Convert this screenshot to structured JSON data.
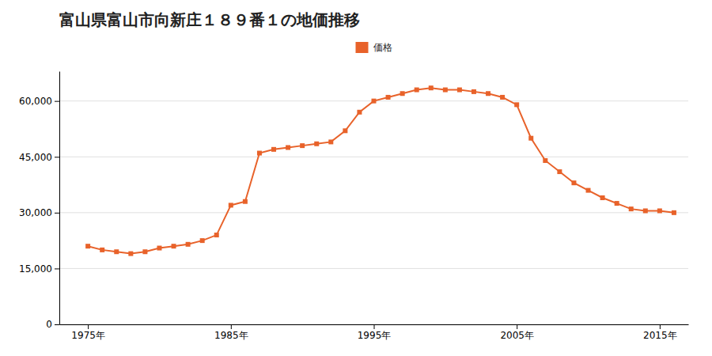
{
  "chart_data": {
    "type": "line",
    "title": "富山県富山市向新庄１８９番１の地価推移",
    "x": [
      1975,
      1976,
      1977,
      1978,
      1979,
      1980,
      1981,
      1982,
      1983,
      1984,
      1985,
      1986,
      1987,
      1988,
      1989,
      1990,
      1991,
      1992,
      1993,
      1994,
      1995,
      1996,
      1997,
      1998,
      1999,
      2000,
      2001,
      2002,
      2003,
      2004,
      2005,
      2006,
      2007,
      2008,
      2009,
      2010,
      2011,
      2012,
      2013,
      2014,
      2015,
      2016
    ],
    "series": [
      {
        "name": "価格",
        "color": "#e8622a",
        "marker": "square",
        "values": [
          21000,
          20000,
          19500,
          19000,
          19500,
          20500,
          21000,
          21500,
          22500,
          24000,
          32000,
          33000,
          46000,
          47000,
          47500,
          48000,
          48500,
          49000,
          52000,
          57000,
          60000,
          61000,
          62000,
          63000,
          63500,
          63000,
          63000,
          62500,
          62000,
          61000,
          59000,
          50000,
          44000,
          41000,
          38000,
          36000,
          34000,
          32500,
          31000,
          30500,
          30500,
          30000
        ]
      }
    ],
    "xlim": [
      1973,
      2017
    ],
    "xticks": [
      {
        "value": 1975,
        "label": "1975年"
      },
      {
        "value": 1985,
        "label": "1985年"
      },
      {
        "value": 1995,
        "label": "1995年"
      },
      {
        "value": 2005,
        "label": "2005年"
      },
      {
        "value": 2015,
        "label": "2015年"
      }
    ],
    "ylim": [
      0,
      68000
    ],
    "yticks": [
      0,
      {
        "value": 15000,
        "label": "15,000"
      },
      {
        "value": 30000,
        "label": "30,000"
      },
      {
        "value": 45000,
        "label": "45,000"
      },
      {
        "value": 60000,
        "label": "60,000"
      }
    ],
    "grid": "y",
    "legend": "top"
  }
}
